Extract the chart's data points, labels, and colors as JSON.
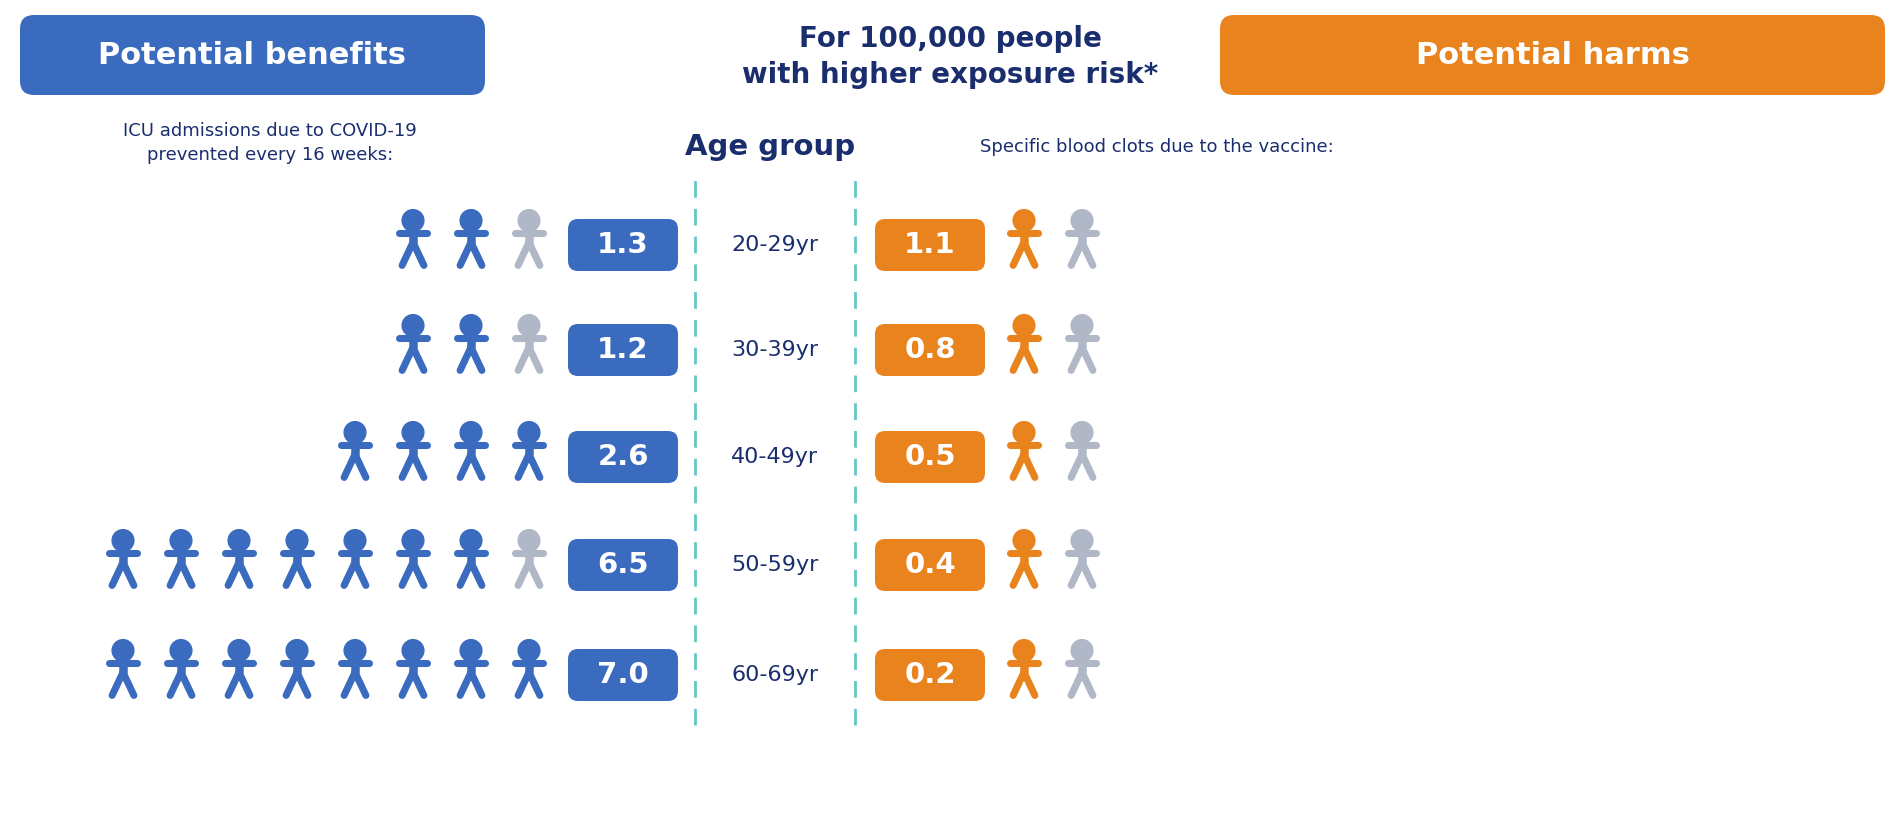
{
  "title_center": "For 100,000 people\nwith higher exposure risk*",
  "left_header": "Potential benefits",
  "right_header": "Potential harms",
  "left_subheader": "ICU admissions due to COVID-19\nprevented every 16 weeks:",
  "right_subheader": "Specific blood clots due to the vaccine:",
  "center_header": "Age group",
  "age_groups": [
    "20-29yr",
    "30-39yr",
    "40-49yr",
    "50-59yr",
    "60-69yr"
  ],
  "benefit_values": [
    "1.3",
    "1.2",
    "2.6",
    "6.5",
    "7.0"
  ],
  "harm_values": [
    "1.1",
    "0.8",
    "0.5",
    "0.4",
    "0.2"
  ],
  "benefit_people_blue": [
    2,
    2,
    4,
    7,
    8
  ],
  "benefit_people_grey": [
    1,
    1,
    0,
    1,
    0
  ],
  "harm_people_orange": [
    1,
    1,
    1,
    1,
    1
  ],
  "harm_people_grey": [
    1,
    1,
    1,
    1,
    1
  ],
  "blue_color": "#3a6bbf",
  "orange_color": "#e8831e",
  "grey_color": "#b0b8c8",
  "white": "#ffffff",
  "background": "#ffffff",
  "text_dark": "#1a2e6e",
  "figure_width": 19.0,
  "figure_height": 8.15,
  "dpi": 100
}
